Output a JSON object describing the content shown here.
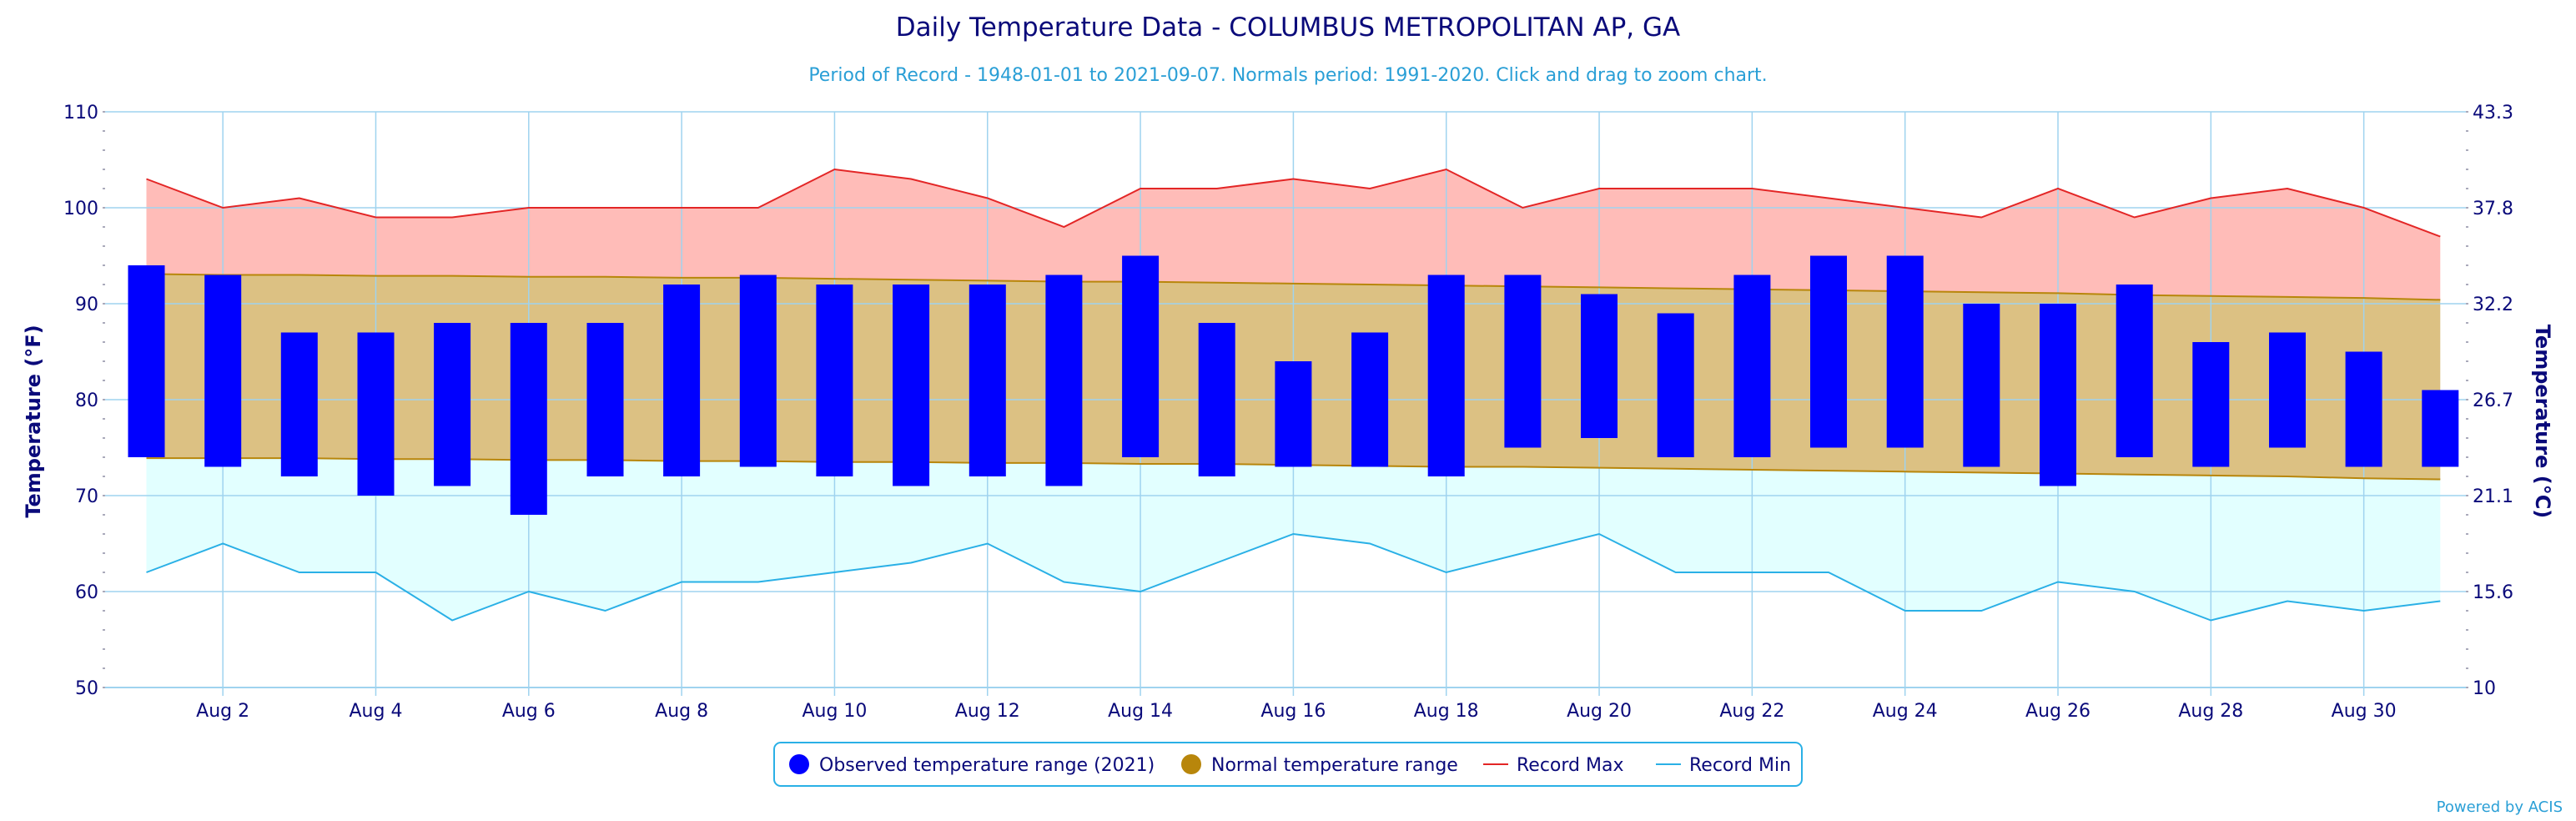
{
  "chart_data": {
    "type": "bar",
    "title": "Daily Temperature Data - COLUMBUS METROPOLITAN AP, GA",
    "subtitle": "Period of Record - 1948-01-01 to 2021-09-07. Normals period: 1991-2020. Click and drag to zoom chart.",
    "ylabel": "Temperature (°F)",
    "ylabel_right": "Temperature (°C)",
    "ylim": [
      50,
      110
    ],
    "y_ticks": [
      "50",
      "60",
      "70",
      "80",
      "90",
      "100",
      "110"
    ],
    "y2_ticks": [
      "10",
      "15.6",
      "21.1",
      "26.7",
      "32.2",
      "37.8",
      "43.3"
    ],
    "x_ticks": [
      "Aug 2",
      "Aug 4",
      "Aug 6",
      "Aug 8",
      "Aug 10",
      "Aug 12",
      "Aug 14",
      "Aug 16",
      "Aug 18",
      "Aug 20",
      "Aug 22",
      "Aug 24",
      "Aug 26",
      "Aug 28",
      "Aug 30"
    ],
    "x_tick_days": [
      2,
      4,
      6,
      8,
      10,
      12,
      14,
      16,
      18,
      20,
      22,
      24,
      26,
      28,
      30
    ],
    "days": [
      1,
      2,
      3,
      4,
      5,
      6,
      7,
      8,
      9,
      10,
      11,
      12,
      13,
      14,
      15,
      16,
      17,
      18,
      19,
      20,
      21,
      22,
      23,
      24,
      25,
      26,
      27,
      28,
      29,
      30,
      31
    ],
    "series": [
      {
        "name": "Observed temperature range (2021)",
        "color": "#0000ff",
        "high": [
          94,
          93,
          87,
          87,
          88,
          88,
          88,
          92,
          93,
          92,
          92,
          92,
          93,
          95,
          88,
          84,
          87,
          93,
          93,
          91,
          89,
          93,
          95,
          95,
          90,
          90,
          92,
          86,
          87,
          85,
          81
        ],
        "low": [
          74,
          73,
          72,
          70,
          71,
          68,
          72,
          72,
          73,
          72,
          71,
          72,
          71,
          74,
          72,
          73,
          73,
          72,
          75,
          76,
          74,
          74,
          75,
          75,
          73,
          71,
          74,
          73,
          75,
          73,
          73
        ]
      },
      {
        "name": "Normal temperature range",
        "color": "#b8860b",
        "fill": "#dcc183",
        "high": [
          93.1,
          93.0,
          93.0,
          92.9,
          92.9,
          92.8,
          92.8,
          92.7,
          92.7,
          92.6,
          92.5,
          92.4,
          92.3,
          92.3,
          92.2,
          92.1,
          92.0,
          91.9,
          91.8,
          91.7,
          91.6,
          91.5,
          91.4,
          91.3,
          91.2,
          91.1,
          90.9,
          90.8,
          90.7,
          90.6,
          90.4
        ],
        "low": [
          73.9,
          73.9,
          73.9,
          73.8,
          73.8,
          73.7,
          73.7,
          73.6,
          73.6,
          73.5,
          73.5,
          73.4,
          73.4,
          73.3,
          73.3,
          73.2,
          73.1,
          73.0,
          73.0,
          72.9,
          72.8,
          72.7,
          72.6,
          72.5,
          72.4,
          72.3,
          72.2,
          72.1,
          72.0,
          71.8,
          71.7
        ]
      },
      {
        "name": "Record Max",
        "color": "#e32626",
        "fill": "#ffbcb8",
        "values": [
          103,
          100,
          101,
          99,
          99,
          100,
          100,
          100,
          100,
          104,
          103,
          101,
          98,
          102,
          102,
          103,
          102,
          104,
          100,
          102,
          102,
          102,
          101,
          100,
          99,
          102,
          99,
          101,
          102,
          100,
          97
        ]
      },
      {
        "name": "Record Min",
        "color": "#2ab0e6",
        "fill": "#e2ffff",
        "values": [
          62,
          65,
          62,
          62,
          57,
          60,
          58,
          61,
          61,
          62,
          63,
          65,
          61,
          60,
          63,
          66,
          65,
          62,
          64,
          66,
          62,
          62,
          62,
          58,
          58,
          61,
          60,
          57,
          59,
          58,
          59
        ]
      }
    ],
    "grid": true,
    "legend_position": "bottom-center",
    "credit": "Powered by ACIS"
  }
}
